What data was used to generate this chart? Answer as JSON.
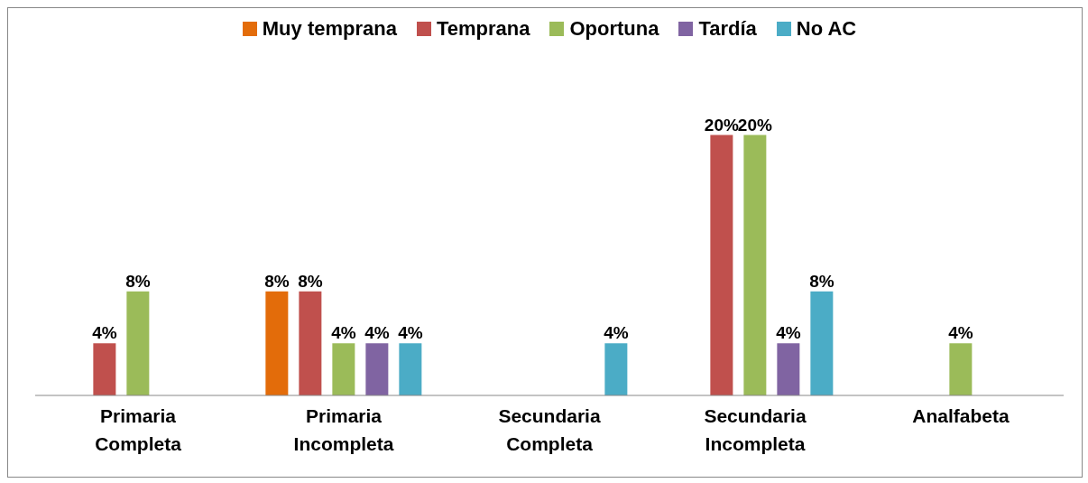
{
  "chart_data": {
    "type": "bar",
    "categories": [
      "Primaria Completa",
      "Primaria Incompleta",
      "Secundaria Completa",
      "Secundaria Incompleta",
      "Analfabeta"
    ],
    "series": [
      {
        "name": "Muy temprana",
        "color": "#e36c0a",
        "values": [
          null,
          8,
          null,
          null,
          null
        ],
        "value_labels": [
          null,
          "8%",
          null,
          null,
          null
        ]
      },
      {
        "name": "Temprana",
        "color": "#c0504d",
        "values": [
          4,
          8,
          null,
          20,
          null
        ],
        "value_labels": [
          "4%",
          "8%",
          null,
          "20%",
          null
        ]
      },
      {
        "name": "Oportuna",
        "color": "#9bbb59",
        "values": [
          8,
          4,
          null,
          20,
          4
        ],
        "value_labels": [
          "8%",
          "4%",
          null,
          "20%",
          "4%"
        ]
      },
      {
        "name": "Tardía",
        "color": "#8064a2",
        "values": [
          null,
          4,
          null,
          4,
          null
        ],
        "value_labels": [
          null,
          "4%",
          null,
          "4%",
          null
        ]
      },
      {
        "name": "No AC",
        "color": "#4bacc6",
        "values": [
          null,
          4,
          4,
          8,
          null
        ],
        "value_labels": [
          null,
          "4%",
          "4%",
          "8%",
          null
        ]
      }
    ],
    "legend": "top",
    "grid": false
  }
}
